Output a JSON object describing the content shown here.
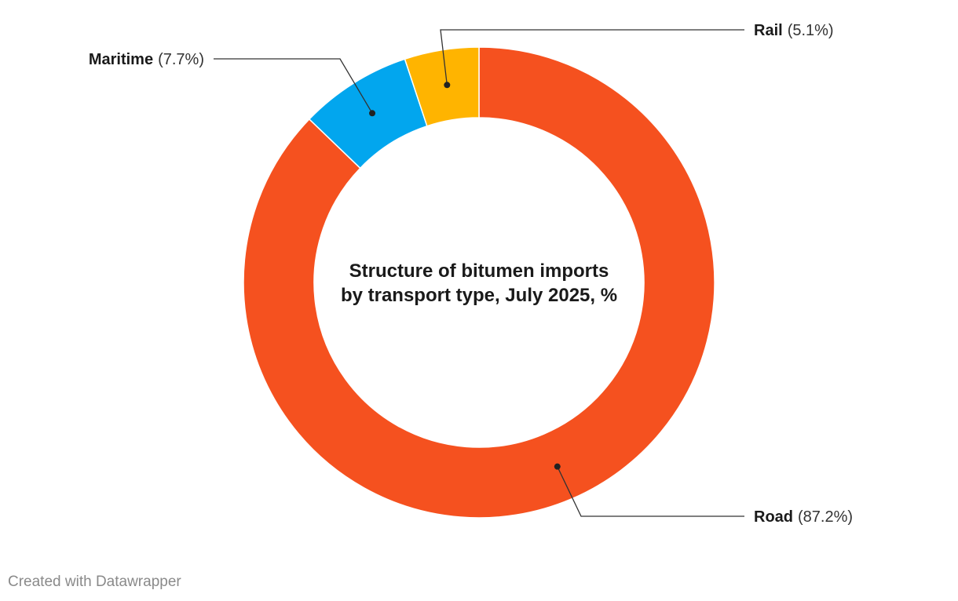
{
  "chart_data": {
    "type": "pie",
    "variant": "donut",
    "title": "Structure of bitumen imports\nby transport type, July 2025, %",
    "slices": [
      {
        "name": "Road",
        "value": 87.2,
        "value_label": "(87.2%)",
        "color": "#f5511f",
        "label_side": "right"
      },
      {
        "name": "Maritime",
        "value": 7.7,
        "value_label": "(7.7%)",
        "color": "#02a6ee",
        "label_side": "left"
      },
      {
        "name": "Rail",
        "value": 5.1,
        "value_label": "(5.1%)",
        "color": "#ffb400",
        "label_side": "right"
      }
    ],
    "legend": "none",
    "labels": "outside-with-leader-lines"
  },
  "footer": {
    "credit": "Created with Datawrapper"
  }
}
